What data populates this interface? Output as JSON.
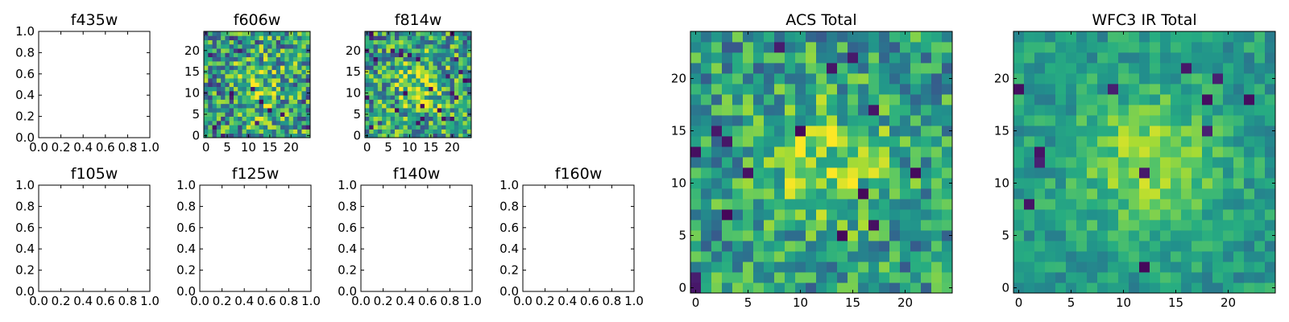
{
  "chart_data": [
    {
      "type": "heatmap",
      "title": "f435w",
      "empty": true,
      "xlim": [
        0,
        1
      ],
      "ylim": [
        0,
        1
      ],
      "xticks": [
        "0.0",
        "0.2",
        "0.4",
        "0.6",
        "0.8",
        "1.0"
      ],
      "yticks": [
        "0.0",
        "0.2",
        "0.4",
        "0.6",
        "0.8",
        "1.0"
      ]
    },
    {
      "type": "heatmap",
      "title": "f606w",
      "empty": false,
      "xlim": [
        -0.5,
        24.5
      ],
      "ylim": [
        -0.5,
        24.5
      ],
      "xticks": [
        "0",
        "5",
        "10",
        "15",
        "20"
      ],
      "yticks": [
        "0",
        "5",
        "10",
        "15",
        "20"
      ],
      "colormap": "viridis",
      "noise": 0.78
    },
    {
      "type": "heatmap",
      "title": "f814w",
      "empty": false,
      "xlim": [
        -0.5,
        24.5
      ],
      "ylim": [
        -0.5,
        24.5
      ],
      "xticks": [
        "0",
        "5",
        "10",
        "15",
        "20"
      ],
      "yticks": [
        "0",
        "5",
        "10",
        "15",
        "20"
      ],
      "colormap": "viridis",
      "noise": 0.72
    },
    {
      "type": "heatmap",
      "title": "f105w",
      "empty": true,
      "xlim": [
        0,
        1
      ],
      "ylim": [
        0,
        1
      ],
      "xticks": [
        "0.0",
        "0.2",
        "0.4",
        "0.6",
        "0.8",
        "1.0"
      ],
      "yticks": [
        "0.0",
        "0.2",
        "0.4",
        "0.6",
        "0.8",
        "1.0"
      ]
    },
    {
      "type": "heatmap",
      "title": "f125w",
      "empty": true,
      "xlim": [
        0,
        1
      ],
      "ylim": [
        0,
        1
      ],
      "xticks": [
        "0.0",
        "0.2",
        "0.4",
        "0.6",
        "0.8",
        "1.0"
      ],
      "yticks": [
        "0.0",
        "0.2",
        "0.4",
        "0.6",
        "0.8",
        "1.0"
      ]
    },
    {
      "type": "heatmap",
      "title": "f140w",
      "empty": true,
      "xlim": [
        0,
        1
      ],
      "ylim": [
        0,
        1
      ],
      "xticks": [
        "0.0",
        "0.2",
        "0.4",
        "0.6",
        "0.8",
        "1.0"
      ],
      "yticks": [
        "0.0",
        "0.2",
        "0.4",
        "0.6",
        "0.8",
        "1.0"
      ]
    },
    {
      "type": "heatmap",
      "title": "f160w",
      "empty": true,
      "xlim": [
        0,
        1
      ],
      "ylim": [
        0,
        1
      ],
      "xticks": [
        "0.0",
        "0.2",
        "0.4",
        "0.6",
        "0.8",
        "1.0"
      ],
      "yticks": [
        "0.0",
        "0.2",
        "0.4",
        "0.6",
        "0.8",
        "1.0"
      ]
    },
    {
      "type": "heatmap",
      "title": "ACS Total",
      "empty": false,
      "xlim": [
        -0.5,
        24.5
      ],
      "ylim": [
        -0.5,
        24.5
      ],
      "xticks": [
        "0",
        "5",
        "10",
        "15",
        "20"
      ],
      "yticks": [
        "0",
        "5",
        "10",
        "15",
        "20"
      ],
      "colormap": "viridis",
      "noise": 0.55
    },
    {
      "type": "heatmap",
      "title": "WFC3 IR Total",
      "empty": false,
      "xlim": [
        -0.5,
        24.5
      ],
      "ylim": [
        -0.5,
        24.5
      ],
      "xticks": [
        "0",
        "5",
        "10",
        "15",
        "20"
      ],
      "yticks": [
        "0",
        "5",
        "10",
        "15",
        "20"
      ],
      "colormap": "viridis",
      "noise": 0.3
    }
  ]
}
